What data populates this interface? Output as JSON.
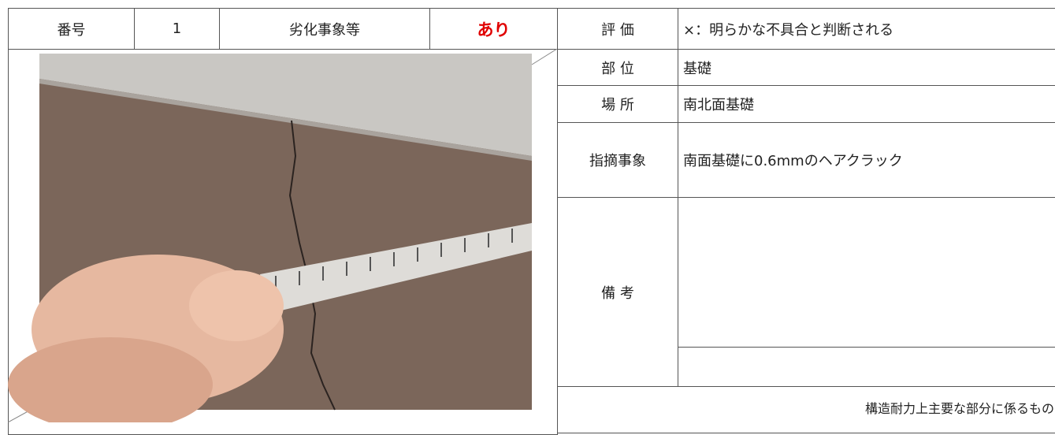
{
  "header": {
    "number_label": "番号",
    "number": "1",
    "defect_label": "劣化事象等",
    "defect": "あり",
    "evaluation_label": "評 価",
    "evaluation": "×：明らかな不具合と判断される"
  },
  "details": [
    {
      "label": "部 位",
      "value": "基礎"
    },
    {
      "label": "場 所",
      "value": "南北面基礎"
    },
    {
      "label": "指摘事象",
      "value": "南面基礎に0.6mmのヘアクラック"
    }
  ],
  "remarks_label": "備 考",
  "footer": "構造耐力上主要な部分に係るもの"
}
